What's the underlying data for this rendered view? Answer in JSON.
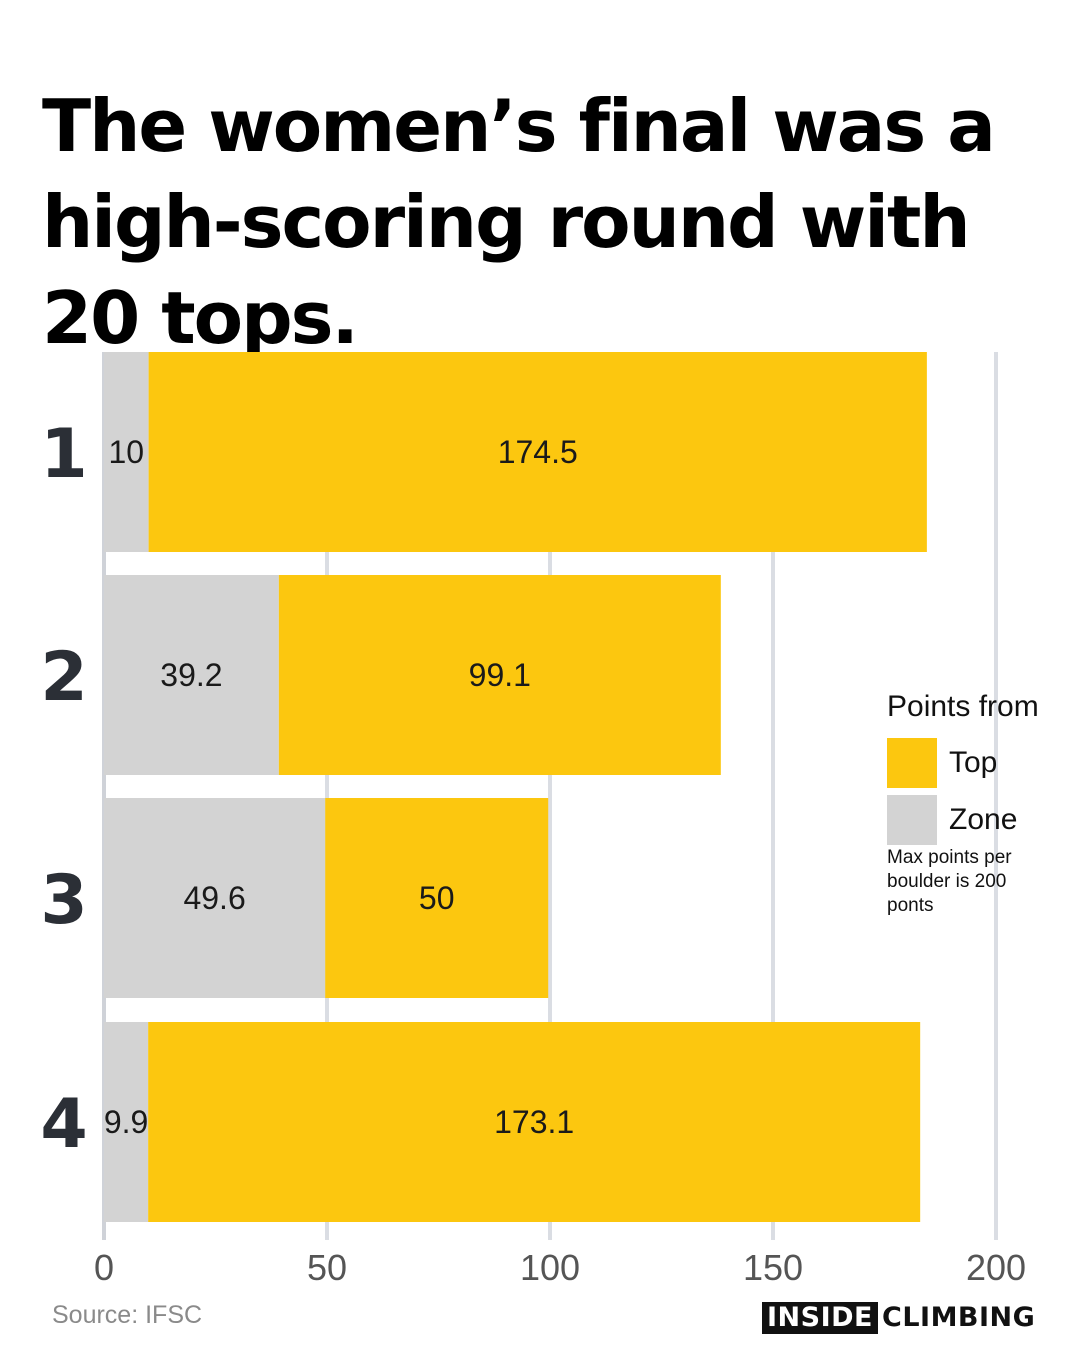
{
  "title": "The women’s final was a high-scoring round with 20 tops.",
  "chart_data": {
    "type": "bar",
    "orientation": "horizontal",
    "stacked": true,
    "categories": [
      "1",
      "2",
      "3",
      "4"
    ],
    "series": [
      {
        "name": "Zone",
        "color": "#d3d3d3",
        "values": [
          10,
          39.2,
          49.6,
          9.9
        ]
      },
      {
        "name": "Top",
        "color": "#fcc70f",
        "values": [
          174.5,
          99.1,
          50,
          173.1
        ]
      }
    ],
    "xlim": [
      0,
      200
    ],
    "xticks": [
      0,
      50,
      100,
      150,
      200
    ],
    "grid": true,
    "legend_position": "right"
  },
  "legend": {
    "title": "Points from",
    "items": [
      {
        "label": "Top",
        "color": "#fcc70f"
      },
      {
        "label": "Zone",
        "color": "#d3d3d3"
      }
    ],
    "note": "Max points per boulder is 200 ponts"
  },
  "source": "Source: IFSC",
  "brand": {
    "inside": "INSIDE",
    "climbing": "CLIMBING"
  }
}
